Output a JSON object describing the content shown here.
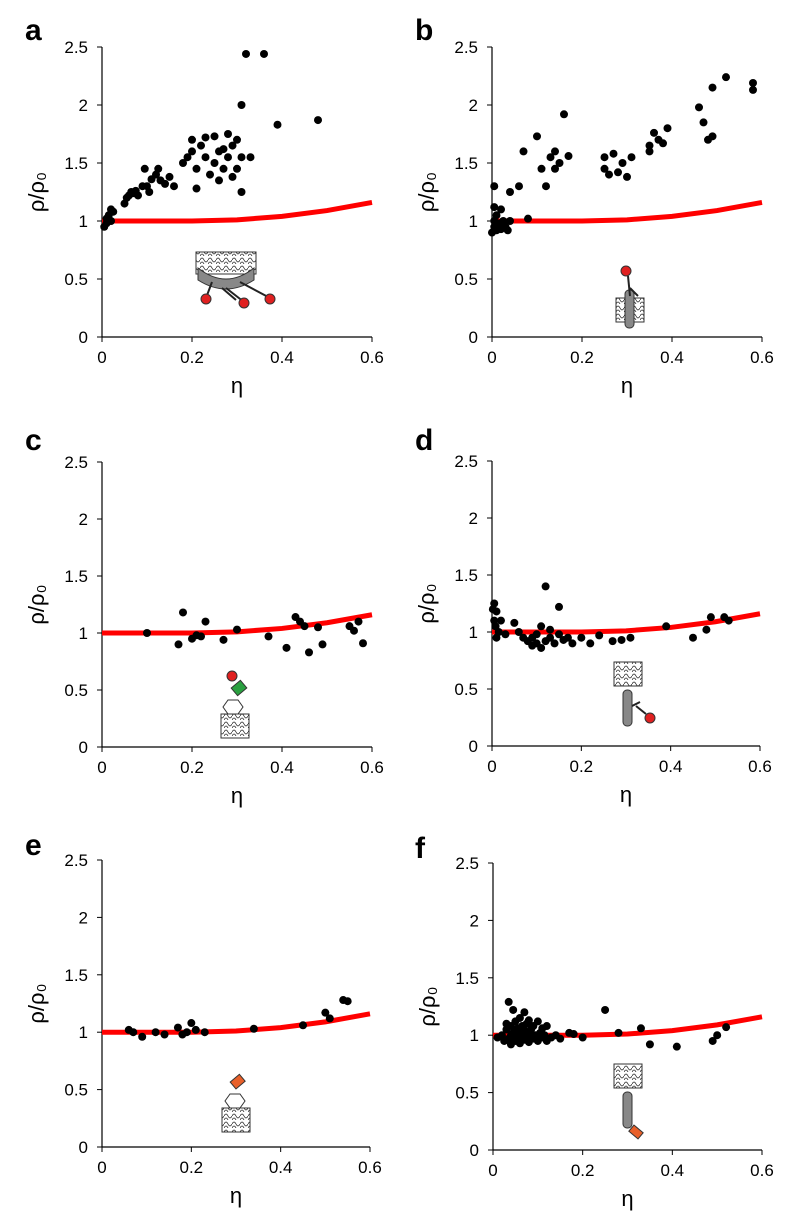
{
  "chart_data": [
    {
      "type": "scatter",
      "panel": "a",
      "xlabel": "η",
      "ylabel": "ρ/ρ₀",
      "xlim": [
        0,
        0.6
      ],
      "ylim": [
        0,
        2.5
      ],
      "xticks": [
        0,
        0.2,
        0.4,
        0.6
      ],
      "yticks": [
        0,
        0.5,
        1,
        1.5,
        2,
        2.5
      ],
      "points": {
        "color": "#000000",
        "x": [
          0.005,
          0.01,
          0.01,
          0.015,
          0.02,
          0.025,
          0.02,
          0.05,
          0.055,
          0.06,
          0.065,
          0.07,
          0.075,
          0.08,
          0.09,
          0.095,
          0.1,
          0.105,
          0.11,
          0.12,
          0.125,
          0.13,
          0.14,
          0.15,
          0.16,
          0.18,
          0.19,
          0.2,
          0.2,
          0.21,
          0.21,
          0.22,
          0.23,
          0.23,
          0.24,
          0.25,
          0.25,
          0.26,
          0.26,
          0.27,
          0.27,
          0.28,
          0.28,
          0.29,
          0.29,
          0.3,
          0.3,
          0.31,
          0.31,
          0.31,
          0.32,
          0.33,
          0.36,
          0.39,
          0.48
        ],
        "y": [
          0.95,
          0.98,
          1.02,
          1.05,
          1.1,
          1.08,
          1.0,
          1.15,
          1.2,
          1.22,
          1.25,
          1.24,
          1.26,
          1.22,
          1.3,
          1.45,
          1.3,
          1.25,
          1.36,
          1.4,
          1.45,
          1.35,
          1.32,
          1.38,
          1.3,
          1.5,
          1.55,
          1.6,
          1.7,
          1.45,
          1.28,
          1.65,
          1.72,
          1.55,
          1.4,
          1.73,
          1.5,
          1.6,
          1.35,
          1.62,
          1.45,
          1.75,
          1.55,
          1.65,
          1.38,
          1.7,
          1.45,
          1.25,
          1.55,
          2.0,
          2.44,
          1.55,
          2.44,
          1.83,
          1.87
        ]
      },
      "curve": {
        "color": "#ff0000",
        "x": [
          0,
          0.1,
          0.2,
          0.3,
          0.4,
          0.5,
          0.6
        ],
        "y": [
          1,
          1,
          1,
          1.01,
          1.04,
          1.09,
          1.16
        ]
      }
    },
    {
      "type": "scatter",
      "panel": "b",
      "xlabel": "η",
      "ylabel": "ρ/ρ₀",
      "xlim": [
        0,
        0.6
      ],
      "ylim": [
        0,
        2.5
      ],
      "xticks": [
        0,
        0.2,
        0.4,
        0.6
      ],
      "yticks": [
        0,
        0.5,
        1,
        1.5,
        2,
        2.5
      ],
      "points": {
        "color": "#000000",
        "x": [
          0,
          0.005,
          0.005,
          0.01,
          0.01,
          0.015,
          0.02,
          0.02,
          0.025,
          0.03,
          0.035,
          0.04,
          0.005,
          0.005,
          0.04,
          0.06,
          0.07,
          0.08,
          0.1,
          0.11,
          0.12,
          0.13,
          0.14,
          0.14,
          0.15,
          0.16,
          0.17,
          0.25,
          0.25,
          0.26,
          0.27,
          0.28,
          0.29,
          0.3,
          0.31,
          0.35,
          0.35,
          0.36,
          0.37,
          0.38,
          0.39,
          0.46,
          0.47,
          0.48,
          0.49,
          0.49,
          0.52,
          0.58,
          0.58
        ],
        "y": [
          0.9,
          0.95,
          1.0,
          0.92,
          1.05,
          0.98,
          0.93,
          1.1,
          1.0,
          0.95,
          0.92,
          1.0,
          1.12,
          1.3,
          1.25,
          1.3,
          1.6,
          1.02,
          1.73,
          1.45,
          1.3,
          1.55,
          1.45,
          1.6,
          1.5,
          1.92,
          1.56,
          1.45,
          1.55,
          1.4,
          1.58,
          1.42,
          1.5,
          1.38,
          1.55,
          1.6,
          1.65,
          1.76,
          1.7,
          1.67,
          1.8,
          1.98,
          1.85,
          1.7,
          1.73,
          2.15,
          2.24,
          2.19,
          2.13
        ]
      },
      "curve": {
        "color": "#ff0000",
        "x": [
          0,
          0.1,
          0.2,
          0.3,
          0.4,
          0.5,
          0.6
        ],
        "y": [
          1,
          1,
          1,
          1.01,
          1.04,
          1.09,
          1.16
        ]
      }
    },
    {
      "type": "scatter",
      "panel": "c",
      "xlabel": "η",
      "ylabel": "ρ/ρ₀",
      "xlim": [
        0,
        0.6
      ],
      "ylim": [
        0,
        2.5
      ],
      "xticks": [
        0,
        0.2,
        0.4,
        0.6
      ],
      "yticks": [
        0,
        0.5,
        1,
        1.5,
        2,
        2.5
      ],
      "points": {
        "color": "#000000",
        "x": [
          0.1,
          0.17,
          0.18,
          0.2,
          0.21,
          0.22,
          0.23,
          0.27,
          0.3,
          0.37,
          0.41,
          0.43,
          0.44,
          0.45,
          0.46,
          0.48,
          0.49,
          0.55,
          0.56,
          0.57,
          0.58
        ],
        "y": [
          1.0,
          0.9,
          1.18,
          0.95,
          0.98,
          0.97,
          1.1,
          0.94,
          1.03,
          0.97,
          0.87,
          1.14,
          1.1,
          1.06,
          0.83,
          1.05,
          0.9,
          1.06,
          1.02,
          1.1,
          0.91
        ]
      },
      "curve": {
        "color": "#ff0000",
        "x": [
          0,
          0.1,
          0.2,
          0.3,
          0.4,
          0.5,
          0.6
        ],
        "y": [
          1,
          1,
          1,
          1.01,
          1.04,
          1.09,
          1.16
        ]
      }
    },
    {
      "type": "scatter",
      "panel": "d",
      "xlabel": "η",
      "ylabel": "ρ/ρ₀",
      "xlim": [
        0,
        0.6
      ],
      "ylim": [
        0,
        2.5
      ],
      "xticks": [
        0,
        0.2,
        0.4,
        0.6
      ],
      "yticks": [
        0,
        0.5,
        1,
        1.5,
        2,
        2.5
      ],
      "points": {
        "color": "#000000",
        "x": [
          0.002,
          0.005,
          0.005,
          0.008,
          0.01,
          0.01,
          0.015,
          0.02,
          0.03,
          0.05,
          0.06,
          0.07,
          0.08,
          0.09,
          0.09,
          0.1,
          0.1,
          0.11,
          0.11,
          0.12,
          0.12,
          0.13,
          0.13,
          0.14,
          0.15,
          0.15,
          0.16,
          0.17,
          0.18,
          0.2,
          0.22,
          0.24,
          0.27,
          0.29,
          0.31,
          0.39,
          0.45,
          0.48,
          0.49,
          0.52,
          0.53
        ],
        "y": [
          1.2,
          1.25,
          1.1,
          1.05,
          1.18,
          0.95,
          1.0,
          1.1,
          0.98,
          1.08,
          1.0,
          0.95,
          0.92,
          0.88,
          0.95,
          0.9,
          0.98,
          0.86,
          1.05,
          1.4,
          0.92,
          0.95,
          1.02,
          0.9,
          0.98,
          1.22,
          0.93,
          0.95,
          0.9,
          0.95,
          0.9,
          0.97,
          0.92,
          0.93,
          0.95,
          1.05,
          0.95,
          1.02,
          1.13,
          1.13,
          1.1
        ]
      },
      "curve": {
        "color": "#ff0000",
        "x": [
          0,
          0.1,
          0.2,
          0.3,
          0.4,
          0.5,
          0.6
        ],
        "y": [
          1,
          1,
          1,
          1.01,
          1.04,
          1.09,
          1.16
        ]
      }
    },
    {
      "type": "scatter",
      "panel": "e",
      "xlabel": "η",
      "ylabel": "ρ/ρ₀",
      "xlim": [
        0,
        0.6
      ],
      "ylim": [
        0,
        2.5
      ],
      "xticks": [
        0,
        0.2,
        0.4,
        0.6
      ],
      "yticks": [
        0,
        0.5,
        1,
        1.5,
        2,
        2.5
      ],
      "points": {
        "color": "#000000",
        "x": [
          0.06,
          0.07,
          0.09,
          0.12,
          0.14,
          0.17,
          0.18,
          0.19,
          0.2,
          0.21,
          0.23,
          0.34,
          0.45,
          0.5,
          0.51,
          0.54,
          0.55
        ],
        "y": [
          1.02,
          1.0,
          0.96,
          1.0,
          0.98,
          1.04,
          0.98,
          1.0,
          1.08,
          1.02,
          1.0,
          1.03,
          1.06,
          1.17,
          1.12,
          1.28,
          1.27
        ]
      },
      "curve": {
        "color": "#ff0000",
        "x": [
          0,
          0.1,
          0.2,
          0.3,
          0.4,
          0.5,
          0.6
        ],
        "y": [
          1,
          1,
          1,
          1.01,
          1.04,
          1.09,
          1.16
        ]
      }
    },
    {
      "type": "scatter",
      "panel": "f",
      "xlabel": "η",
      "ylabel": "ρ/ρ₀",
      "xlim": [
        0,
        0.6
      ],
      "ylim": [
        0,
        2.5
      ],
      "xticks": [
        0,
        0.2,
        0.4,
        0.6
      ],
      "yticks": [
        0,
        0.5,
        1,
        1.5,
        2,
        2.5
      ],
      "points": {
        "color": "#000000",
        "x": [
          0.01,
          0.02,
          0.025,
          0.03,
          0.03,
          0.035,
          0.035,
          0.04,
          0.04,
          0.04,
          0.045,
          0.045,
          0.05,
          0.05,
          0.05,
          0.055,
          0.055,
          0.06,
          0.06,
          0.06,
          0.065,
          0.065,
          0.07,
          0.07,
          0.07,
          0.075,
          0.075,
          0.08,
          0.08,
          0.08,
          0.085,
          0.09,
          0.09,
          0.095,
          0.1,
          0.1,
          0.105,
          0.11,
          0.11,
          0.115,
          0.12,
          0.12,
          0.13,
          0.14,
          0.15,
          0.17,
          0.18,
          0.2,
          0.25,
          0.28,
          0.33,
          0.35,
          0.41,
          0.49,
          0.5,
          0.52
        ],
        "y": [
          0.98,
          1.0,
          0.95,
          1.05,
          1.1,
          1.29,
          0.97,
          1.0,
          1.08,
          0.92,
          1.02,
          1.22,
          0.95,
          1.04,
          1.12,
          0.98,
          1.06,
          0.93,
          1.0,
          1.15,
          1.02,
          1.08,
          0.96,
          1.04,
          1.2,
          0.99,
          1.1,
          0.94,
          1.01,
          1.13,
          1.05,
          0.97,
          1.08,
          1.0,
          0.95,
          1.12,
          1.02,
          0.98,
          1.06,
          1.0,
          0.95,
          1.08,
          0.98,
          1.0,
          0.97,
          1.02,
          1.01,
          0.98,
          1.22,
          1.02,
          1.06,
          0.92,
          0.9,
          0.95,
          1.0,
          1.07
        ]
      },
      "curve": {
        "color": "#ff0000",
        "x": [
          0,
          0.1,
          0.2,
          0.3,
          0.4,
          0.5,
          0.6
        ],
        "y": [
          1,
          1,
          1,
          1.01,
          1.04,
          1.09,
          1.16
        ]
      }
    }
  ]
}
